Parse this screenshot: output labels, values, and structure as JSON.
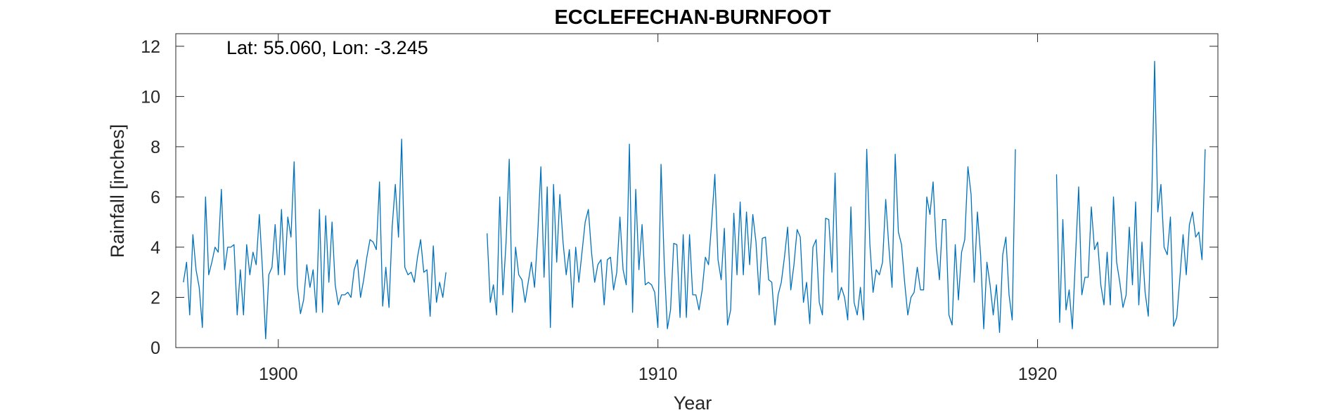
{
  "chart_data": {
    "type": "line",
    "title": "ECCLEFECHAN-BURNFOOT",
    "xlabel": "Year",
    "ylabel": "Rainfall [inches]",
    "annotation": "Lat: 55.060, Lon: -3.245",
    "xlim": [
      1897.3,
      1924.75
    ],
    "ylim": [
      0,
      12.5
    ],
    "xticks": [
      1900,
      1910,
      1920
    ],
    "yticks": [
      0,
      2,
      4,
      6,
      8,
      10,
      12
    ],
    "grid": false,
    "line_color": "#0072BD",
    "series": [
      {
        "start": 1897.5,
        "step": 0.08333,
        "values": [
          2.6,
          3.4,
          1.3,
          4.5,
          3.1,
          2.4,
          0.8,
          6.0,
          2.9,
          3.4,
          4.0,
          3.8,
          6.3,
          3.1,
          4.0,
          4.0,
          4.1,
          1.3,
          3.1,
          1.3,
          4.1,
          2.9,
          3.8,
          3.3,
          5.3,
          3.1,
          0.35,
          2.9,
          3.2,
          4.9,
          2.9,
          5.5,
          2.9,
          5.2,
          4.4,
          7.4,
          2.5,
          1.35,
          1.9,
          3.3,
          2.4,
          3.1,
          1.4,
          5.5,
          1.4,
          5.25,
          2.6,
          5.0,
          2.5,
          1.7,
          2.1,
          2.1,
          2.2,
          2.0,
          3.1,
          3.5,
          2.0,
          2.7,
          3.6,
          4.3,
          4.2,
          3.9,
          6.6,
          1.65,
          3.2,
          1.6,
          4.8,
          6.5,
          4.4,
          8.3,
          3.2,
          2.9,
          3.0,
          2.6,
          3.6,
          4.3,
          3.0,
          3.1,
          1.25,
          4.05,
          1.8,
          2.6,
          2.0,
          3.0,
          null,
          null,
          null,
          null,
          null,
          null,
          null,
          null,
          null,
          null,
          null,
          null,
          4.55,
          1.8,
          2.5,
          1.3,
          6.0,
          2.1,
          4.2,
          7.5,
          1.4,
          4.0,
          2.9,
          2.7,
          1.8,
          2.6,
          3.4,
          2.4,
          4.5,
          7.2,
          2.8,
          6.4,
          0.8,
          6.5,
          3.4,
          6.1,
          4.2,
          2.9,
          3.9,
          1.6,
          4.0,
          2.6,
          3.8,
          5.0,
          5.5,
          3.8,
          2.6,
          3.3,
          3.5,
          1.7,
          3.5,
          3.6,
          2.3,
          3.0,
          5.2,
          3.1,
          2.5,
          8.1,
          1.4,
          6.3,
          3.1,
          4.9,
          2.5,
          2.6,
          2.5,
          2.2,
          0.8,
          7.3,
          3.4,
          0.75,
          1.5,
          4.15,
          4.1,
          1.2,
          4.5,
          1.2,
          4.5,
          2.1,
          2.1,
          1.5,
          2.3,
          3.6,
          3.3,
          5.0,
          6.9,
          3.5,
          2.7,
          4.75,
          0.9,
          1.5,
          5.35,
          2.9,
          5.8,
          2.9,
          5.4,
          3.3,
          5.3,
          4.2,
          2.1,
          4.35,
          4.4,
          2.7,
          2.6,
          0.9,
          2.1,
          2.6,
          3.6,
          4.8,
          2.3,
          3.3,
          4.7,
          4.4,
          1.8,
          2.6,
          0.95,
          4.0,
          4.3,
          1.8,
          1.3,
          5.15,
          5.1,
          3.0,
          6.95,
          1.9,
          2.4,
          2.0,
          1.1,
          5.6,
          1.8,
          1.3,
          2.4,
          1.1,
          7.9,
          4.1,
          2.2,
          3.1,
          2.9,
          3.4,
          5.9,
          4.0,
          2.4,
          7.7,
          4.6,
          4.1,
          2.6,
          1.3,
          2.0,
          2.2,
          3.2,
          2.3,
          2.3,
          6.0,
          5.3,
          6.6,
          4.0,
          2.7,
          5.1,
          5.1,
          1.3,
          0.9,
          4.1,
          1.9,
          3.8,
          4.3,
          7.2,
          6.1,
          2.6,
          5.4,
          3.7,
          0.75,
          3.4,
          2.5,
          1.3,
          2.5,
          0.6,
          3.7,
          4.4,
          2.1,
          1.1,
          7.9,
          null,
          null,
          null,
          null,
          null,
          null,
          null,
          null,
          null,
          null,
          null,
          null,
          6.9,
          1.0,
          5.1,
          1.5,
          2.3,
          0.75,
          3.6,
          6.4,
          2.1,
          2.8,
          2.8,
          5.6,
          3.9,
          4.2,
          2.5,
          1.7,
          3.8,
          1.7,
          6.0,
          3.4,
          2.6,
          1.6,
          2.1,
          4.8,
          2.5,
          5.8,
          1.7,
          4.2,
          2.2,
          1.25,
          5.4,
          11.4,
          5.4,
          6.5,
          4.0,
          3.7,
          5.2,
          0.85,
          1.2,
          2.8,
          4.5,
          2.9,
          4.9,
          5.4,
          4.4,
          4.6,
          3.5,
          7.9
        ]
      }
    ]
  }
}
